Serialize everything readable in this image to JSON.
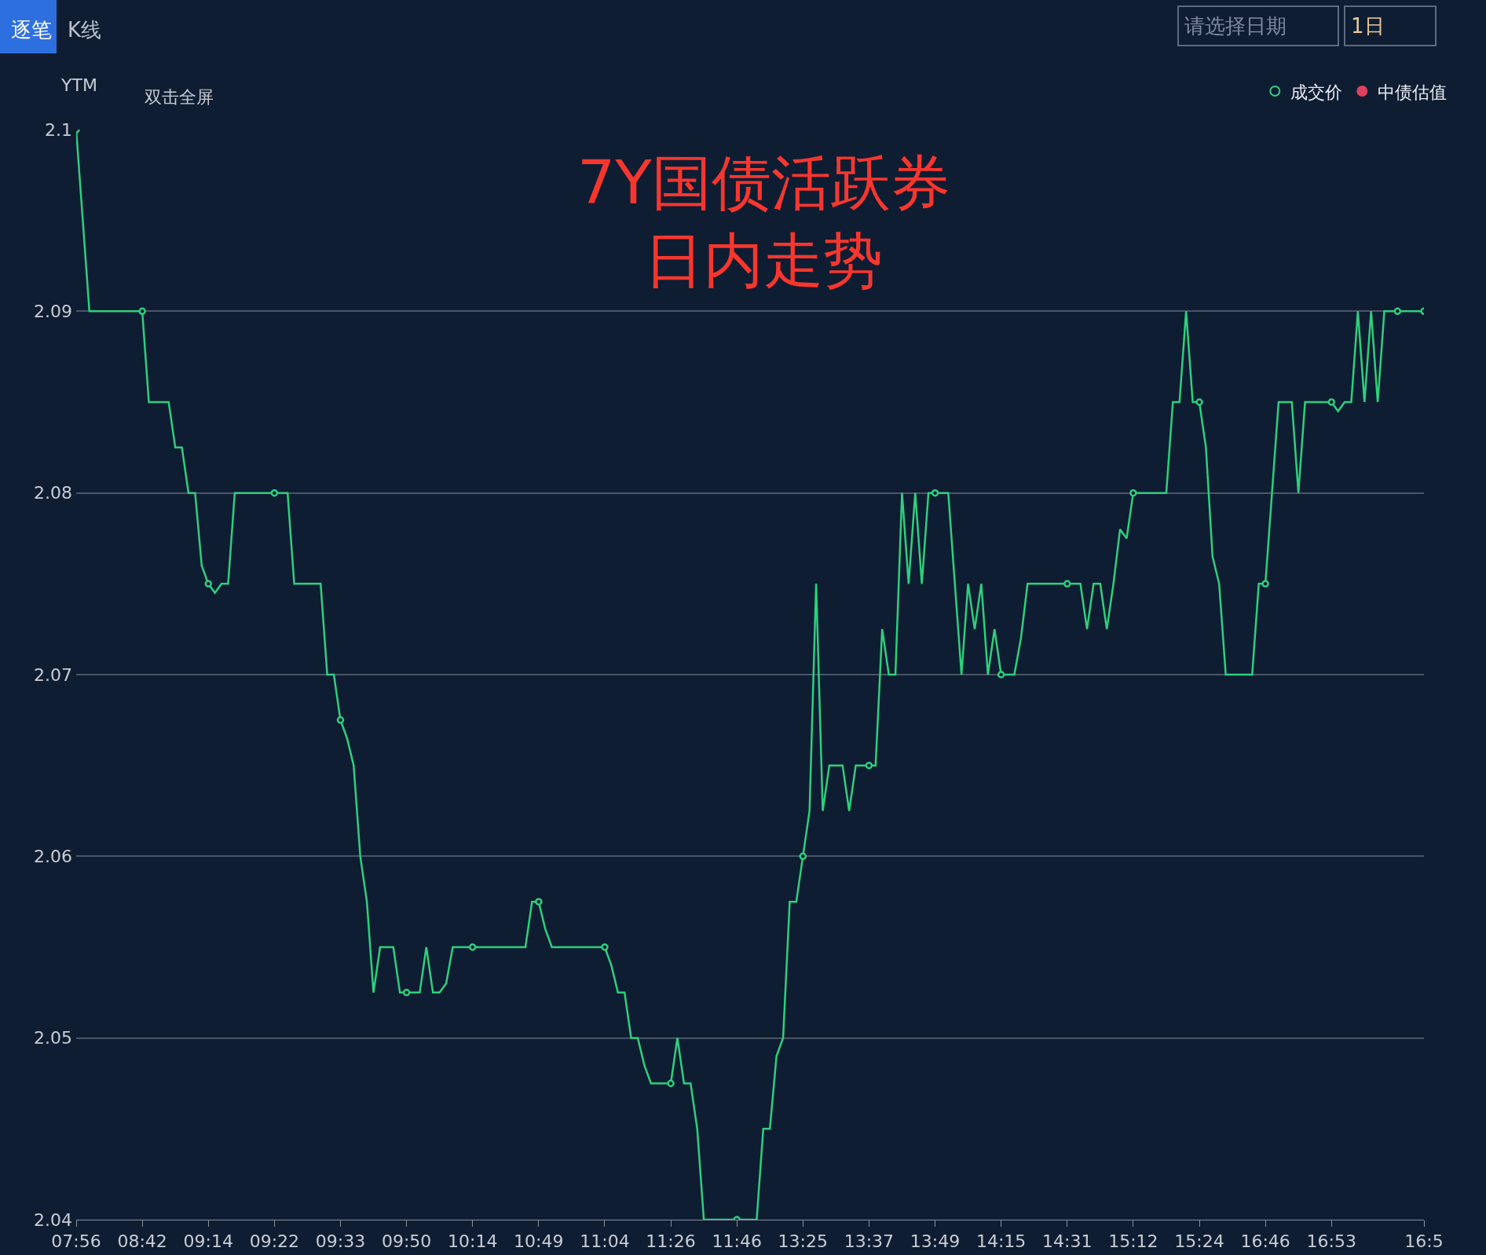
{
  "chart_data": {
    "type": "line",
    "title": "7Y国债活跃券日内走势",
    "ylabel": "YTM",
    "annotations": [
      "逐笔",
      "K线",
      "请选择日期",
      "1日",
      "双击全屏"
    ],
    "categories": [
      "07:56",
      null,
      null,
      null,
      null,
      null,
      null,
      null,
      null,
      null,
      "08:42",
      null,
      null,
      null,
      null,
      null,
      null,
      null,
      null,
      null,
      "09:14",
      null,
      null,
      null,
      null,
      null,
      null,
      null,
      null,
      null,
      "09:22",
      null,
      null,
      null,
      null,
      null,
      null,
      null,
      null,
      null,
      "09:33",
      null,
      null,
      null,
      null,
      null,
      null,
      null,
      null,
      null,
      "09:50",
      null,
      null,
      null,
      null,
      null,
      null,
      null,
      null,
      null,
      "10:14",
      null,
      null,
      null,
      null,
      null,
      null,
      null,
      null,
      null,
      "10:49",
      null,
      null,
      null,
      null,
      null,
      null,
      null,
      null,
      null,
      "11:04",
      null,
      null,
      null,
      null,
      null,
      null,
      null,
      null,
      null,
      "11:26",
      null,
      null,
      null,
      null,
      null,
      null,
      null,
      null,
      null,
      "11:46",
      null,
      null,
      null,
      null,
      null,
      null,
      null,
      null,
      null,
      "13:25",
      null,
      null,
      null,
      null,
      null,
      null,
      null,
      null,
      null,
      "13:37",
      null,
      null,
      null,
      null,
      null,
      null,
      null,
      null,
      null,
      "13:49",
      null,
      null,
      null,
      null,
      null,
      null,
      null,
      null,
      null,
      "14:15",
      null,
      null,
      null,
      null,
      null,
      null,
      null,
      null,
      null,
      "14:31",
      null,
      null,
      null,
      null,
      null,
      null,
      null,
      null,
      null,
      "15:12",
      null,
      null,
      null,
      null,
      null,
      null,
      null,
      null,
      null,
      "15:24",
      null,
      null,
      null,
      null,
      null,
      null,
      null,
      null,
      null,
      "16:46",
      null,
      null,
      null,
      null,
      null,
      null,
      null,
      null,
      null,
      "16:53",
      null,
      null,
      null,
      null,
      null,
      null,
      null,
      null,
      null,
      null,
      null,
      null,
      null,
      "16:5"
    ],
    "series": [
      {
        "color": "#2ecf7c",
        "values": [
          2.1,
          2.095,
          2.09,
          2.09,
          2.09,
          2.09,
          2.09,
          2.09,
          2.09,
          2.09,
          2.09,
          2.085,
          2.085,
          2.085,
          2.085,
          2.0825,
          2.0825,
          2.08,
          2.08,
          2.076,
          2.075,
          2.0745,
          2.075,
          2.075,
          2.08,
          2.08,
          2.08,
          2.08,
          2.08,
          2.08,
          2.08,
          2.08,
          2.08,
          2.075,
          2.075,
          2.075,
          2.075,
          2.075,
          2.07,
          2.07,
          2.0675,
          2.0665,
          2.065,
          2.06,
          2.0575,
          2.0525,
          2.055,
          2.055,
          2.055,
          2.0525,
          2.0525,
          2.0525,
          2.0525,
          2.055,
          2.0525,
          2.0525,
          2.053,
          2.055,
          2.055,
          2.055,
          2.055,
          2.055,
          2.055,
          2.055,
          2.055,
          2.055,
          2.055,
          2.055,
          2.055,
          2.0575,
          2.0575,
          2.056,
          2.055,
          2.055,
          2.055,
          2.055,
          2.055,
          2.055,
          2.055,
          2.055,
          2.055,
          2.054,
          2.0525,
          2.0525,
          2.05,
          2.05,
          2.0485,
          2.0475,
          2.0475,
          2.0475,
          2.0475,
          2.05,
          2.0475,
          2.0475,
          2.045,
          2.04,
          2.04,
          2.04,
          2.04,
          2.04,
          2.04,
          2.04,
          2.04,
          2.04,
          2.045,
          2.045,
          2.049,
          2.05,
          2.0575,
          2.0575,
          2.06,
          2.0625,
          2.075,
          2.0625,
          2.065,
          2.065,
          2.065,
          2.0625,
          2.065,
          2.065,
          2.065,
          2.065,
          2.0725,
          2.07,
          2.07,
          2.08,
          2.075,
          2.08,
          2.075,
          2.08,
          2.08,
          2.08,
          2.08,
          2.075,
          2.07,
          2.075,
          2.0725,
          2.075,
          2.07,
          2.0725,
          2.07,
          2.07,
          2.07,
          2.072,
          2.075,
          2.075,
          2.075,
          2.075,
          2.075,
          2.075,
          2.075,
          2.075,
          2.075,
          2.0725,
          2.075,
          2.075,
          2.0725,
          2.075,
          2.078,
          2.0775,
          2.08,
          2.08,
          2.08,
          2.08,
          2.08,
          2.08,
          2.085,
          2.085,
          2.09,
          2.085,
          2.085,
          2.0825,
          2.0765,
          2.075,
          2.07,
          2.07,
          2.07,
          2.07,
          2.07,
          2.075,
          2.075,
          2.08,
          2.085,
          2.085,
          2.085,
          2.08,
          2.085,
          2.085,
          2.085,
          2.085,
          2.085,
          2.0845,
          2.085,
          2.085,
          2.09,
          2.085,
          2.09,
          2.085,
          2.09,
          2.09,
          2.09,
          2.09,
          2.09,
          2.09,
          2.09
        ]
      },
      {
        "type": "scatter",
        "name": "成交价",
        "color": "#2ecf7c",
        "marker": "circle",
        "values": [
          2.1,
          null,
          null,
          null,
          null,
          null,
          null,
          null,
          null,
          null,
          2.09,
          null,
          null,
          null,
          null,
          null,
          null,
          null,
          null,
          null,
          2.075,
          null,
          null,
          null,
          null,
          null,
          null,
          null,
          null,
          null,
          2.08,
          null,
          null,
          null,
          null,
          null,
          null,
          null,
          null,
          null,
          2.0675,
          null,
          null,
          null,
          null,
          null,
          null,
          null,
          null,
          null,
          2.0525,
          null,
          null,
          null,
          null,
          null,
          null,
          null,
          null,
          null,
          2.055,
          null,
          null,
          null,
          null,
          null,
          null,
          null,
          null,
          null,
          2.0575,
          null,
          null,
          null,
          null,
          null,
          null,
          null,
          null,
          null,
          2.055,
          null,
          null,
          null,
          null,
          null,
          null,
          null,
          null,
          null,
          2.0475,
          null,
          null,
          null,
          null,
          null,
          null,
          null,
          null,
          null,
          2.04,
          null,
          null,
          null,
          null,
          null,
          null,
          null,
          null,
          null,
          2.06,
          null,
          null,
          null,
          null,
          null,
          null,
          null,
          null,
          null,
          2.065,
          null,
          null,
          null,
          null,
          null,
          null,
          null,
          null,
          null,
          2.08,
          null,
          null,
          null,
          null,
          null,
          null,
          null,
          null,
          null,
          2.07,
          null,
          null,
          null,
          null,
          null,
          null,
          null,
          null,
          null,
          2.075,
          null,
          null,
          null,
          null,
          null,
          null,
          null,
          null,
          null,
          2.08,
          null,
          null,
          null,
          null,
          null,
          null,
          null,
          null,
          null,
          2.085,
          null,
          null,
          null,
          null,
          null,
          null,
          null,
          null,
          null,
          2.075,
          null,
          null,
          null,
          null,
          null,
          null,
          null,
          null,
          null,
          2.085,
          null,
          null,
          null,
          null,
          null,
          null,
          null,
          null,
          null,
          2.09,
          null,
          null,
          null,
          2.09
        ]
      },
      {
        "type": "scatter",
        "name": "中债估值",
        "color": "#e0405f",
        "marker": "circle",
        "values": [
          null,
          null,
          null,
          null,
          null,
          null,
          null,
          null,
          null,
          null,
          null,
          null,
          null,
          null,
          null,
          null,
          null,
          null,
          null,
          null,
          null,
          null,
          null,
          null,
          null,
          null,
          null,
          null,
          null,
          null,
          null,
          null,
          null,
          null,
          null,
          null,
          null,
          null,
          null,
          null,
          null,
          null,
          null,
          null,
          null,
          null,
          null,
          null,
          null,
          null,
          null,
          null,
          null,
          null,
          null,
          null,
          null,
          null,
          null,
          null,
          null,
          null,
          null,
          null,
          null,
          null,
          null,
          null,
          null,
          null,
          null,
          null,
          null,
          null,
          null,
          null,
          null,
          null,
          null,
          null,
          null,
          null,
          null,
          null,
          null,
          null,
          null,
          null,
          null,
          null,
          null,
          null,
          null,
          null,
          null,
          null,
          null,
          null,
          null,
          null,
          null,
          null,
          null,
          null,
          null,
          null,
          null,
          null,
          null,
          null,
          null,
          null,
          null,
          null,
          null,
          null,
          null,
          null,
          null,
          null,
          null,
          null,
          null,
          null,
          null,
          null,
          null,
          null,
          null,
          null,
          null,
          null,
          null,
          null,
          null,
          null,
          null,
          null,
          null,
          null,
          null,
          null,
          null,
          null,
          null,
          null,
          null,
          null,
          null,
          null,
          null,
          null,
          null,
          null,
          null,
          null,
          null,
          null,
          null,
          null,
          null,
          null,
          null,
          null,
          null,
          null,
          null,
          null,
          null,
          null,
          null,
          null,
          null,
          null,
          null,
          null,
          null,
          null,
          null,
          null,
          null,
          null,
          null,
          null,
          null,
          null,
          null,
          null,
          null,
          null,
          null,
          null,
          null,
          null,
          null,
          null,
          null,
          null,
          null,
          null,
          null,
          null,
          null,
          null,
          null
        ]
      }
    ],
    "ylim": [
      2.04,
      2.1
    ],
    "yticks": [
      2.04,
      2.05,
      2.06,
      2.07,
      2.08,
      2.09,
      2.1
    ],
    "grid": "y",
    "legend": "top right",
    "line_style": "solid"
  }
}
